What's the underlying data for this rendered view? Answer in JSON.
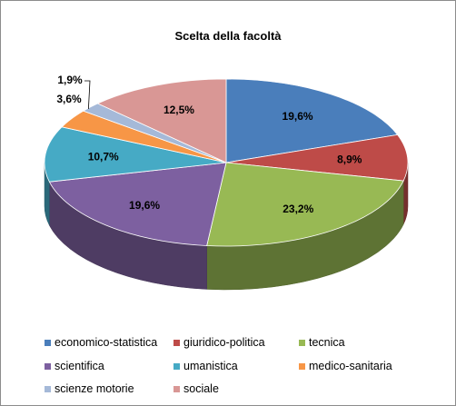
{
  "chart_data": {
    "type": "pie",
    "title": "Scelta della facoltà",
    "three_d": true,
    "legend_placement": "bottom",
    "categories": [
      "economico-statistica",
      "giuridico-politica",
      "tecnica",
      "scientifica",
      "umanistica",
      "medico-sanitaria",
      "scienze motorie",
      "sociale"
    ],
    "values": [
      19.6,
      8.9,
      23.2,
      19.6,
      10.7,
      3.6,
      1.9,
      12.5
    ],
    "data_labels": [
      "19,6%",
      "8,9%",
      "23,2%",
      "19,6%",
      "10,7%",
      "3,6%",
      "1,9%",
      "12,5%"
    ],
    "colors": [
      "#4a7ebb",
      "#be4b48",
      "#98b954",
      "#7d60a0",
      "#46aac5",
      "#f79646",
      "#a5b9d8",
      "#d99795"
    ]
  }
}
